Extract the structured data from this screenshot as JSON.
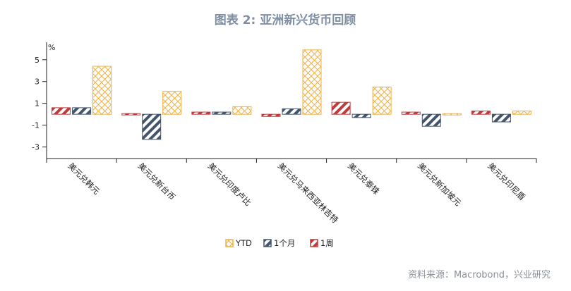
{
  "title": "图表 2: 亚洲新兴货币回顾",
  "source": "资料来源：Macrobond，兴业研究",
  "chart_data": {
    "type": "bar",
    "title": "图表 2: 亚洲新兴货币回顾",
    "xlabel": "",
    "ylabel": "%",
    "ylim": [
      -3.8,
      6.6
    ],
    "yticks": [
      5,
      3,
      1,
      -1,
      -3
    ],
    "grid": false,
    "legend_position": "bottom",
    "categories": [
      "美元兑韩元",
      "美元兑新台币",
      "美元兑印度卢比",
      "美元兑马来西亚林吉特",
      "美元兑泰铢",
      "美元兑新加坡元",
      "美元兑印尼盾"
    ],
    "series": [
      {
        "name": "1周",
        "color": "#c0393b",
        "pattern": "diagonal",
        "values": [
          0.6,
          -0.1,
          0.2,
          -0.2,
          1.1,
          0.2,
          0.3
        ]
      },
      {
        "name": "1个月",
        "color": "#44546a",
        "pattern": "diagonal",
        "values": [
          0.6,
          -2.3,
          0.2,
          0.5,
          -0.3,
          -1.1,
          -0.7
        ]
      },
      {
        "name": "YTD",
        "color": "#f0b040",
        "pattern": "crosshatch",
        "values": [
          4.4,
          2.1,
          0.7,
          5.9,
          2.5,
          -0.1,
          0.3
        ]
      }
    ],
    "legend_order": [
      "YTD",
      "1个月",
      "1周"
    ]
  }
}
